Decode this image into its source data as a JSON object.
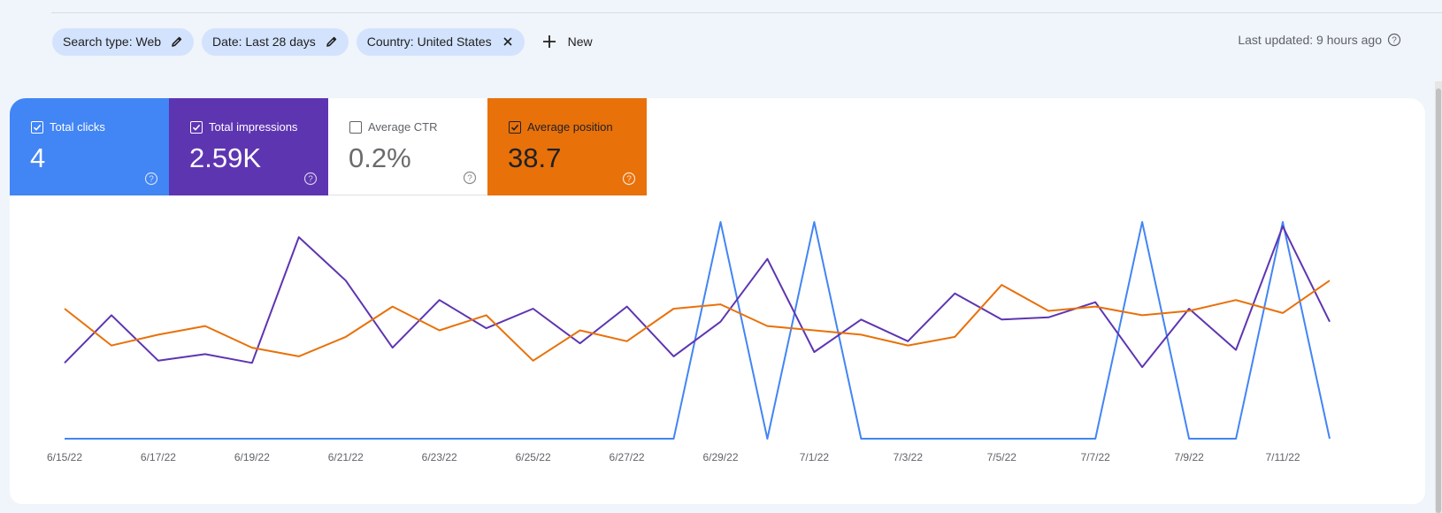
{
  "filters": {
    "chips": [
      {
        "label": "Search type: Web",
        "icon": "pencil-icon"
      },
      {
        "label": "Date: Last 28 days",
        "icon": "pencil-icon"
      },
      {
        "label": "Country: United States",
        "icon": "close-icon"
      }
    ],
    "new_label": "New"
  },
  "last_updated": "Last updated: 9 hours ago",
  "metrics": {
    "clicks": {
      "label": "Total clicks",
      "value": "4",
      "checked": true,
      "color": "#4285f4"
    },
    "impressions": {
      "label": "Total impressions",
      "value": "2.59K",
      "checked": true,
      "color": "#5e35b1"
    },
    "ctr": {
      "label": "Average CTR",
      "value": "0.2%",
      "checked": false,
      "color": "#ffffff"
    },
    "position": {
      "label": "Average position",
      "value": "38.7",
      "checked": true,
      "color": "#e8710a"
    }
  },
  "chart_data": {
    "type": "line",
    "x": [
      "6/15/22",
      "6/16/22",
      "6/17/22",
      "6/18/22",
      "6/19/22",
      "6/20/22",
      "6/21/22",
      "6/22/22",
      "6/23/22",
      "6/24/22",
      "6/25/22",
      "6/26/22",
      "6/27/22",
      "6/28/22",
      "6/29/22",
      "6/30/22",
      "7/1/22",
      "7/2/22",
      "7/3/22",
      "7/4/22",
      "7/5/22",
      "7/6/22",
      "7/7/22",
      "7/8/22",
      "7/9/22",
      "7/10/22",
      "7/11/22",
      "7/12/22"
    ],
    "x_tick_labels": [
      "6/15/22",
      "6/17/22",
      "6/19/22",
      "6/21/22",
      "6/23/22",
      "6/25/22",
      "6/27/22",
      "6/29/22",
      "7/1/22",
      "7/3/22",
      "7/5/22",
      "7/7/22",
      "7/9/22",
      "7/11/22"
    ],
    "series": [
      {
        "name": "Total clicks",
        "color": "#4285f4",
        "values": [
          0,
          0,
          0,
          0,
          0,
          0,
          0,
          0,
          0,
          0,
          0,
          0,
          0,
          0,
          1,
          0,
          1,
          0,
          0,
          0,
          0,
          0,
          0,
          1,
          0,
          0,
          1,
          0
        ]
      },
      {
        "name": "Total impressions",
        "color": "#5e35b1",
        "values": [
          0.35,
          0.57,
          0.36,
          0.39,
          0.35,
          0.93,
          0.73,
          0.42,
          0.64,
          0.51,
          0.6,
          0.44,
          0.61,
          0.38,
          0.54,
          0.83,
          0.4,
          0.55,
          0.45,
          0.67,
          0.55,
          0.56,
          0.63,
          0.33,
          0.6,
          0.41,
          0.98,
          0.54
        ]
      },
      {
        "name": "Average position",
        "color": "#e8710a",
        "values": [
          0.6,
          0.43,
          0.48,
          0.52,
          0.42,
          0.38,
          0.47,
          0.61,
          0.5,
          0.57,
          0.36,
          0.5,
          0.45,
          0.6,
          0.62,
          0.52,
          0.5,
          0.48,
          0.43,
          0.47,
          0.71,
          0.59,
          0.61,
          0.57,
          0.59,
          0.64,
          0.58,
          0.73
        ]
      }
    ],
    "grid": false,
    "legend": "none"
  }
}
